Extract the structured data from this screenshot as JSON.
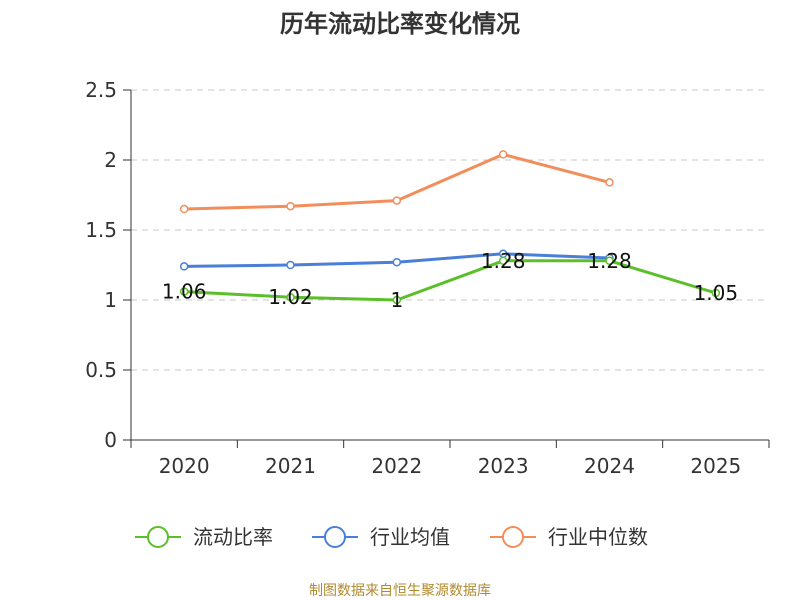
{
  "chart_data": {
    "type": "line",
    "title": "历年流动比率变化情况",
    "categories": [
      "2020",
      "2021",
      "2022",
      "2023",
      "2024",
      "2025"
    ],
    "ylim": [
      0,
      2.5
    ],
    "yticks": [
      "0",
      "0.5",
      "1",
      "1.5",
      "2",
      "2.5"
    ],
    "grid": true,
    "legend_position": "bottom",
    "series": [
      {
        "name": "流动比率",
        "color": "#5bbf2a",
        "values": [
          1.06,
          1.02,
          1.0,
          1.28,
          1.28,
          1.05
        ],
        "labels": [
          "1.06",
          "1.02",
          "1",
          "1.28",
          "1.28",
          "1.05"
        ]
      },
      {
        "name": "行业均值",
        "color": "#4a7fd8",
        "values": [
          1.24,
          1.25,
          1.27,
          1.33,
          1.3,
          null
        ]
      },
      {
        "name": "行业中位数",
        "color": "#f28e5b",
        "values": [
          1.65,
          1.67,
          1.71,
          2.04,
          1.84,
          null
        ]
      }
    ]
  },
  "footer": {
    "source": "制图数据来自恒生聚源数据库"
  }
}
